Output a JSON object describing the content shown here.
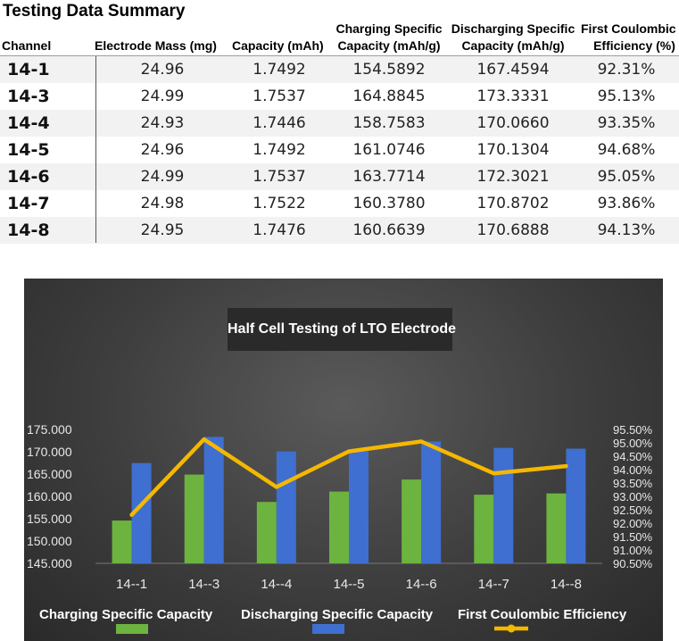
{
  "table": {
    "title": "Testing Data Summary",
    "headers": {
      "channel": "Channel",
      "mass": "Electrode Mass (mg)",
      "capacity": "Capacity (mAh)",
      "charging_line1": "Charging Specific",
      "charging_line2": "Capacity (mAh/g)",
      "discharging_line1": "Discharging Specific",
      "discharging_line2": "Capacity (mAh/g)",
      "efficiency_line1": "First Coulombic",
      "efficiency_line2": "Efficiency (%)"
    },
    "rows": [
      {
        "channel": "14-1",
        "mass": "24.96",
        "capacity": "1.7492",
        "charging": "154.5892",
        "discharging": "167.4594",
        "efficiency": "92.31%"
      },
      {
        "channel": "14-3",
        "mass": "24.99",
        "capacity": "1.7537",
        "charging": "164.8845",
        "discharging": "173.3331",
        "efficiency": "95.13%"
      },
      {
        "channel": "14-4",
        "mass": "24.93",
        "capacity": "1.7446",
        "charging": "158.7583",
        "discharging": "170.0660",
        "efficiency": "93.35%"
      },
      {
        "channel": "14-5",
        "mass": "24.96",
        "capacity": "1.7492",
        "charging": "161.0746",
        "discharging": "170.1304",
        "efficiency": "94.68%"
      },
      {
        "channel": "14-6",
        "mass": "24.99",
        "capacity": "1.7537",
        "charging": "163.7714",
        "discharging": "172.3021",
        "efficiency": "95.05%"
      },
      {
        "channel": "14-7",
        "mass": "24.98",
        "capacity": "1.7522",
        "charging": "160.3780",
        "discharging": "170.8702",
        "efficiency": "93.86%"
      },
      {
        "channel": "14-8",
        "mass": "24.95",
        "capacity": "1.7476",
        "charging": "160.6639",
        "discharging": "170.6888",
        "efficiency": "94.13%"
      }
    ]
  },
  "chart_data": {
    "type": "bar",
    "title": "Half Cell Testing of LTO Electrode",
    "categories": [
      "14--1",
      "14--3",
      "14--4",
      "14--5",
      "14--6",
      "14--7",
      "14--8"
    ],
    "series": [
      {
        "name": "Charging Specific Capacity",
        "type": "bar",
        "axis": "left",
        "color": "#6cb33f",
        "values": [
          154.5892,
          164.8845,
          158.7583,
          161.0746,
          163.7714,
          160.378,
          160.6639
        ]
      },
      {
        "name": "Discharging Specific Capacity",
        "type": "bar",
        "axis": "left",
        "color": "#3f6fd0",
        "values": [
          167.4594,
          173.3331,
          170.066,
          170.1304,
          172.3021,
          170.8702,
          170.6888
        ]
      },
      {
        "name": "First Coulombic Efficiency",
        "type": "line",
        "axis": "right",
        "color": "#f5b800",
        "values": [
          92.31,
          95.13,
          93.35,
          94.68,
          95.05,
          93.86,
          94.13
        ]
      }
    ],
    "left_axis": {
      "ylim": [
        145,
        175
      ],
      "ticks": [
        "145.000",
        "150.000",
        "155.000",
        "160.000",
        "165.000",
        "170.000",
        "175.000"
      ],
      "tick_values": [
        145,
        150,
        155,
        160,
        165,
        170,
        175
      ]
    },
    "right_axis": {
      "ylim": [
        90.5,
        95.5
      ],
      "ticks": [
        "90.50%",
        "91.00%",
        "91.50%",
        "92.00%",
        "92.50%",
        "93.00%",
        "93.50%",
        "94.00%",
        "94.50%",
        "95.00%",
        "95.50%"
      ],
      "tick_values": [
        90.5,
        91,
        91.5,
        92,
        92.5,
        93,
        93.5,
        94,
        94.5,
        95,
        95.5
      ]
    },
    "legend_position": "bottom",
    "grid": false
  }
}
